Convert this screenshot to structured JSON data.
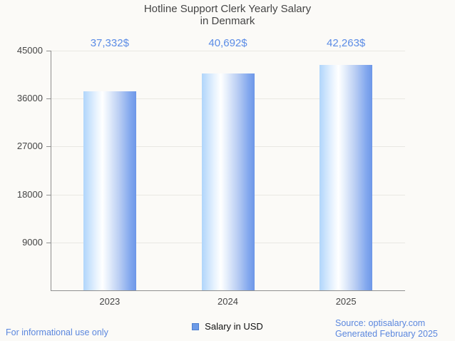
{
  "title": {
    "line1": "Hotline Support Clerk Yearly Salary",
    "line2": "in Denmark"
  },
  "chart_data": {
    "type": "bar",
    "title": "Hotline Support Clerk Yearly Salary in Denmark",
    "categories": [
      "2023",
      "2024",
      "2025"
    ],
    "values": [
      37332,
      40692,
      42263
    ],
    "value_labels": [
      "37,332$",
      "40,692$",
      "42,263$"
    ],
    "series_name": "Salary in USD",
    "xlabel": "",
    "ylabel": "",
    "ylim": [
      0,
      45000
    ],
    "yticks": [
      9000,
      18000,
      27000,
      36000,
      45000
    ],
    "grid": true,
    "legend_position": "bottom-center",
    "colors": {
      "bar_gradient_left": "#b0d5fb",
      "bar_gradient_middle": "#ffffff",
      "bar_gradient_right": "#6d97e8",
      "value_label": "#5b8ce6",
      "axis_text": "#454545",
      "gridline": "#e9e8e3",
      "background": "#fbfaf7"
    }
  },
  "legend": {
    "label": "Salary in USD",
    "swatch_color": "#6d9be7"
  },
  "footer": {
    "left": "For informational use only",
    "source": "Source: optisalary.com",
    "generated": "Generated February 2025"
  }
}
